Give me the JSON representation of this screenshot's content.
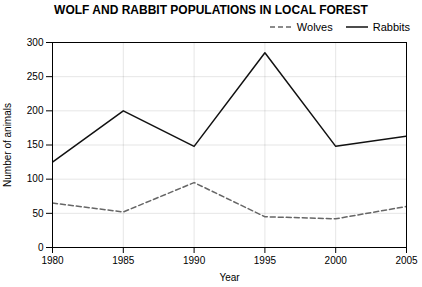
{
  "chart_data": {
    "type": "line",
    "title": "WOLF AND RABBIT POPULATIONS IN LOCAL FOREST",
    "x_label": "Year",
    "y_label": "Number of animals",
    "x": [
      1980,
      1985,
      1990,
      1995,
      2000,
      2005
    ],
    "series": [
      {
        "name": "Wolves",
        "color": "#666666",
        "line_style": "dashed",
        "values": [
          65,
          52,
          95,
          45,
          42,
          60
        ]
      },
      {
        "name": "Rabbits",
        "color": "#111111",
        "line_style": "solid",
        "values": [
          125,
          200,
          148,
          285,
          148,
          163
        ]
      }
    ],
    "xlim": [
      1980,
      2005
    ],
    "xticks": [
      1980,
      1985,
      1990,
      1995,
      2000,
      2005
    ],
    "ylim": [
      0,
      300
    ],
    "yticks": [
      0,
      50,
      100,
      150,
      200,
      250,
      300
    ],
    "grid": true,
    "legend": "upper right"
  }
}
